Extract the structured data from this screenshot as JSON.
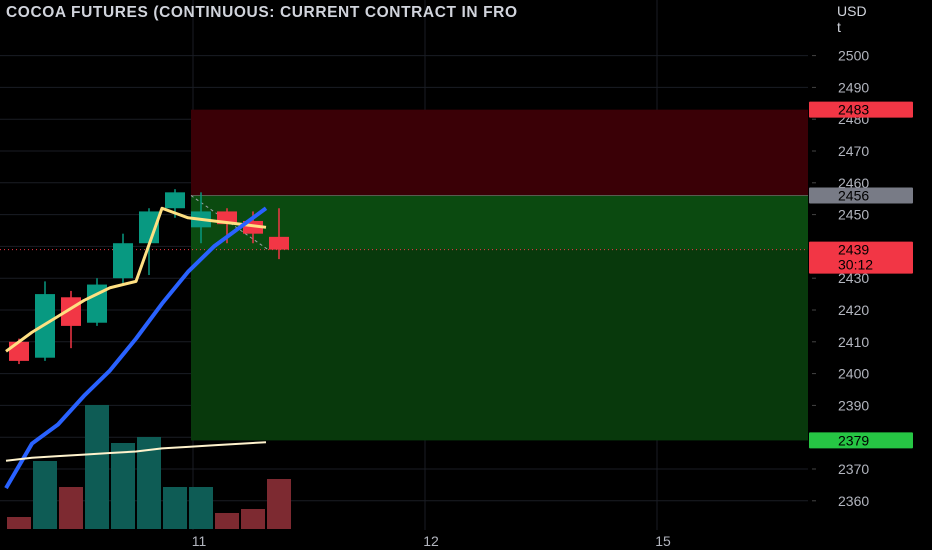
{
  "title": "COCOA FUTURES (CONTINUOUS: CURRENT CONTRACT IN FRO",
  "currency": {
    "line1": "USD",
    "line2": "t"
  },
  "chart_data": {
    "type": "candlestick",
    "y_axis": {
      "ticks": [
        2360,
        2370,
        2380,
        2390,
        2400,
        2410,
        2420,
        2430,
        2440,
        2450,
        2460,
        2470,
        2480,
        2490,
        2500
      ],
      "range": [
        2357,
        2516
      ]
    },
    "x_axis": {
      "ticks": [
        "11",
        "12",
        "15"
      ]
    },
    "candles": [
      {
        "open": 2410,
        "high": 2411,
        "low": 2403,
        "close": 2404
      },
      {
        "open": 2405,
        "high": 2429,
        "low": 2404,
        "close": 2425
      },
      {
        "open": 2424,
        "high": 2426,
        "low": 2408,
        "close": 2415
      },
      {
        "open": 2416,
        "high": 2430,
        "low": 2415,
        "close": 2428
      },
      {
        "open": 2430,
        "high": 2444,
        "low": 2428,
        "close": 2441
      },
      {
        "open": 2441,
        "high": 2452,
        "low": 2431,
        "close": 2451
      },
      {
        "open": 2452,
        "high": 2458,
        "low": 2449,
        "close": 2457
      },
      {
        "open": 2446,
        "high": 2457,
        "low": 2441,
        "close": 2451
      },
      {
        "open": 2451,
        "high": 2452,
        "low": 2441,
        "close": 2447
      },
      {
        "open": 2448,
        "high": 2451,
        "low": 2441,
        "close": 2444
      },
      {
        "open": 2443,
        "high": 2452,
        "low": 2436,
        "close": 2439
      }
    ],
    "volume": [
      {
        "value": 6,
        "direction": "down"
      },
      {
        "value": 34,
        "direction": "up"
      },
      {
        "value": 21,
        "direction": "down"
      },
      {
        "value": 62,
        "direction": "up"
      },
      {
        "value": 43,
        "direction": "up"
      },
      {
        "value": 46,
        "direction": "up"
      },
      {
        "value": 21,
        "direction": "up"
      },
      {
        "value": 21,
        "direction": "up"
      },
      {
        "value": 8,
        "direction": "down"
      },
      {
        "value": 10,
        "direction": "down"
      },
      {
        "value": 25,
        "direction": "down"
      }
    ],
    "fast_ma": [
      2407,
      2413,
      2418,
      2423,
      2427,
      2429,
      2452,
      2449,
      2448,
      2447,
      2446
    ],
    "slow_ma": [
      2364,
      2378,
      2384,
      2393,
      2401,
      2411,
      2422,
      2432,
      2440,
      2446,
      2452
    ],
    "volume_ma": [
      22,
      23,
      23.5,
      24,
      24.5,
      25,
      26,
      26.5,
      27,
      27.5,
      28
    ],
    "position": {
      "entry": 2456,
      "stop_loss": 2483,
      "take_profit": 2379,
      "current": 2439
    },
    "price_labels": {
      "stop": "2483",
      "entry": "2456",
      "current": "2439",
      "countdown": "30:12",
      "target": "2379"
    },
    "colors": {
      "up": "#089981",
      "down": "#f23645",
      "fast_ma": "#ffe082",
      "slow_ma": "#2962ff",
      "volume_ma": "#fff3cd",
      "stop_zone": "#3a0006",
      "target_zone": "#0b4a10",
      "stop_label": "#f23645",
      "entry_label": "#787b86",
      "target_label": "#26c644"
    }
  }
}
